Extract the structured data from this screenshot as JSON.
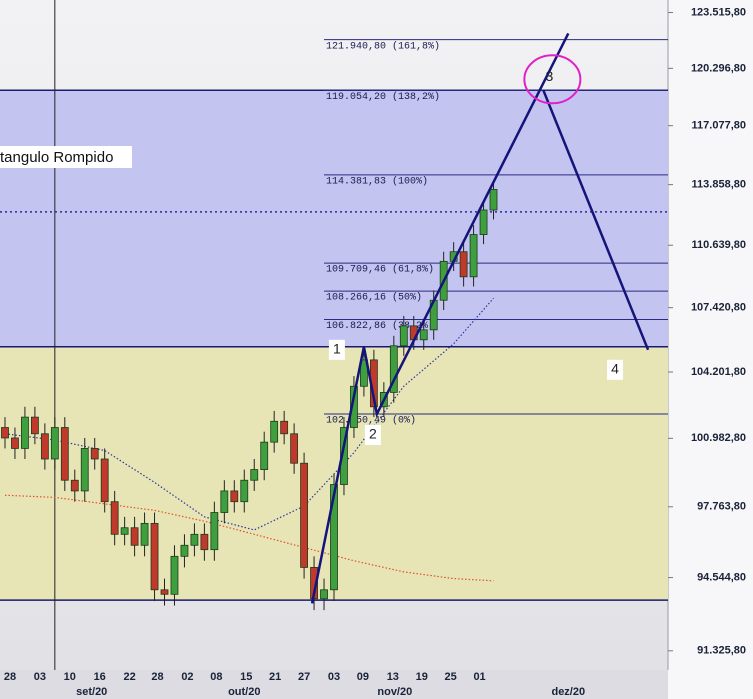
{
  "chart_data": {
    "type": "candlestick",
    "log_scale": true,
    "xlim": [
      -0.5,
      66.5
    ],
    "ylim": [
      90500,
      124250
    ],
    "yticks": [
      {
        "value": 123515.8,
        "label": "123.515,80"
      },
      {
        "value": 120296.8,
        "label": "120.296,80"
      },
      {
        "value": 117077.8,
        "label": "117.077,80"
      },
      {
        "value": 113858.8,
        "label": "113.858,80"
      },
      {
        "value": 110639.8,
        "label": "110.639,80"
      },
      {
        "value": 107420.8,
        "label": "107.420,80"
      },
      {
        "value": 104201.8,
        "label": "104.201,80"
      },
      {
        "value": 100982.8,
        "label": "100.982,80"
      },
      {
        "value": 97763.8,
        "label": "97.763,80"
      },
      {
        "value": 94544.8,
        "label": "94.544,80"
      },
      {
        "value": 91325.8,
        "label": "91.325,80"
      }
    ],
    "xticks": [
      {
        "value": 0.5,
        "label": "28"
      },
      {
        "value": 3.5,
        "label": "03"
      },
      {
        "value": 6.5,
        "label": "10"
      },
      {
        "value": 9.5,
        "label": "16"
      },
      {
        "value": 12.5,
        "label": "22"
      },
      {
        "value": 15.3,
        "label": "28"
      },
      {
        "value": 18.3,
        "label": "02"
      },
      {
        "value": 21.2,
        "label": "08"
      },
      {
        "value": 24.2,
        "label": "15"
      },
      {
        "value": 27.1,
        "label": "21"
      },
      {
        "value": 30,
        "label": "27"
      },
      {
        "value": 33,
        "label": "03"
      },
      {
        "value": 35.9,
        "label": "09"
      },
      {
        "value": 38.9,
        "label": "13"
      },
      {
        "value": 41.8,
        "label": "19"
      },
      {
        "value": 44.7,
        "label": "25"
      },
      {
        "value": 47.6,
        "label": "01"
      }
    ],
    "month_ticks": [
      {
        "value": 8.7,
        "label": "set/20"
      },
      {
        "value": 24,
        "label": "out/20"
      },
      {
        "value": 39.1,
        "label": "nov/20"
      },
      {
        "value": 56.5,
        "label": "dez/20"
      }
    ],
    "up_color": "#3f9f3f",
    "down_color": "#c0392b",
    "open": [
      101500,
      101000,
      100500,
      102000,
      101200,
      100000,
      101500,
      99000,
      98500,
      100500,
      100000,
      98000,
      96500,
      96800,
      96000,
      97000,
      94000,
      93800,
      95500,
      96000,
      96500,
      95800,
      97500,
      98500,
      98000,
      99000,
      99500,
      100800,
      101800,
      101200,
      99800,
      95000,
      93600,
      94000,
      98800,
      101500,
      103500,
      104800,
      102500,
      103200,
      105500,
      106500,
      105800,
      106300,
      107800,
      109800,
      110300,
      109000,
      111200,
      112500
    ],
    "high": [
      102000,
      101500,
      102500,
      102500,
      101700,
      102000,
      102000,
      99500,
      101000,
      101000,
      100500,
      98500,
      97300,
      97300,
      97500,
      97500,
      94500,
      96000,
      96500,
      97000,
      97000,
      98000,
      99000,
      99000,
      99500,
      100000,
      101300,
      102300,
      102300,
      101700,
      100300,
      95500,
      94500,
      99300,
      102000,
      104000,
      105300,
      105300,
      103700,
      106000,
      107000,
      107000,
      106800,
      108300,
      110300,
      110800,
      110800,
      111700,
      113000,
      114100
    ],
    "low": [
      100500,
      100000,
      100000,
      100700,
      99500,
      99500,
      98500,
      98000,
      98000,
      99500,
      97500,
      96000,
      96000,
      95500,
      95500,
      93500,
      93300,
      93300,
      95000,
      95500,
      95300,
      95300,
      97000,
      97500,
      97500,
      98500,
      99000,
      100300,
      100700,
      99300,
      94500,
      93100,
      93100,
      93500,
      98300,
      101000,
      103000,
      102000,
      102000,
      102700,
      105000,
      105300,
      105300,
      105800,
      107300,
      109300,
      108500,
      108500,
      110700,
      112000
    ],
    "close": [
      101000,
      100500,
      102000,
      101200,
      100000,
      101500,
      99000,
      98500,
      100500,
      100000,
      98000,
      96500,
      96800,
      96000,
      97000,
      94000,
      93800,
      95500,
      96000,
      96500,
      95800,
      97500,
      98500,
      98000,
      99000,
      99500,
      100800,
      101800,
      101200,
      99800,
      95000,
      93600,
      94000,
      98800,
      101500,
      103500,
      104800,
      102500,
      103200,
      105500,
      106500,
      105800,
      106300,
      107800,
      109800,
      110300,
      109000,
      111200,
      112500,
      113600
    ],
    "moving_averages": [
      {
        "color": "#2a3a9a",
        "x": [
          0,
          5,
          10,
          15,
          20,
          25,
          30,
          35,
          40,
          45,
          49
        ],
        "values": [
          101200,
          100900,
          100400,
          98900,
          97300,
          96700,
          97800,
          100300,
          103500,
          105600,
          107900
        ]
      },
      {
        "color": "#e0502a",
        "x": [
          0,
          5,
          10,
          15,
          20,
          25,
          30,
          35,
          40,
          45,
          49
        ],
        "values": [
          98300,
          98200,
          97900,
          97600,
          97100,
          96500,
          95900,
          95300,
          94800,
          94500,
          94400
        ]
      }
    ],
    "zones": [
      {
        "from": 105450,
        "to": 119054.2,
        "color": "#c4c4f0"
      },
      {
        "from": 93540,
        "to": 105450,
        "color": "#e7e5b6"
      }
    ],
    "zone_label": "tangulo Rompido",
    "reference_line": 112400,
    "vertical_line": 5,
    "fib_start": 32,
    "fib_levels": [
      {
        "value": 121940.8,
        "label": "121.940,80 (161,8%)"
      },
      {
        "value": 119054.2,
        "label": "119.054,20 (138,2%)"
      },
      {
        "value": 114381.83,
        "label": "114.381,83 (100%)"
      },
      {
        "value": 109709.46,
        "label": "109.709,46 (61,8%)"
      },
      {
        "value": 108266.16,
        "label": "108.266,16 (50%)"
      },
      {
        "value": 106822.86,
        "label": "106.822,86 (38,2%)"
      },
      {
        "value": 102150.49,
        "label": "102.150,49 (0%)"
      }
    ],
    "wave_path": {
      "x": [
        30.8,
        36,
        37.3,
        56.5,
        null,
        54,
        64.5
      ],
      "y": [
        93400,
        105450,
        102150,
        122300,
        null,
        119054,
        105300
      ]
    },
    "wave_labels": [
      "1",
      "2",
      "3",
      "4"
    ]
  }
}
